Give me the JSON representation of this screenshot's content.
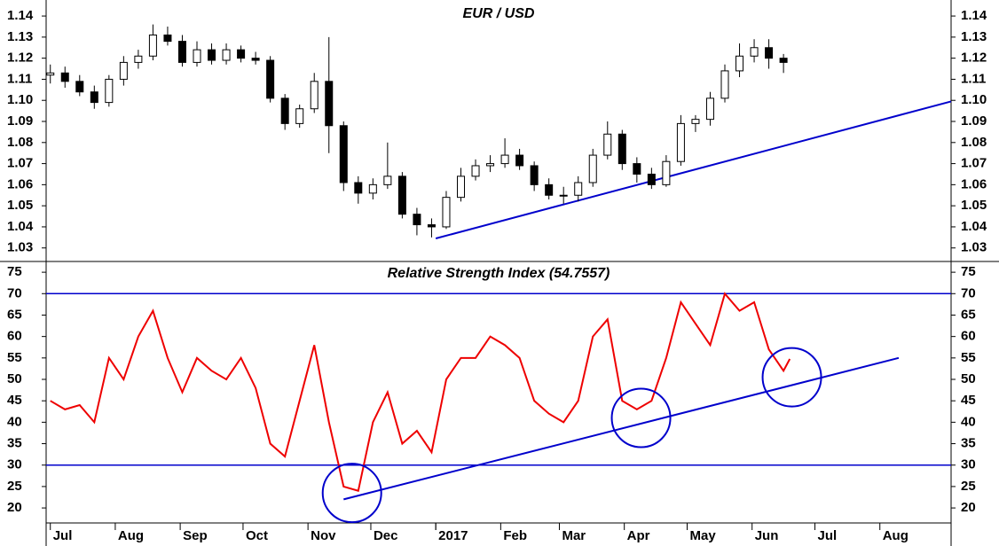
{
  "chart_data": [
    {
      "type": "candlestick",
      "title": "EUR / USD",
      "x": [
        0,
        7,
        14,
        21,
        28,
        35,
        42,
        49,
        56,
        63,
        70,
        77,
        84,
        91,
        98,
        105,
        112,
        119,
        126,
        133,
        140,
        147,
        154,
        161,
        168,
        175,
        182,
        189,
        196,
        203,
        210,
        217,
        224,
        231,
        238,
        245,
        252,
        259,
        266,
        273,
        280,
        287,
        294,
        301,
        308,
        315,
        322,
        329,
        336,
        343,
        350
      ],
      "open": [
        1.112,
        1.113,
        1.109,
        1.104,
        1.099,
        1.11,
        1.118,
        1.121,
        1.131,
        1.128,
        1.118,
        1.124,
        1.119,
        1.124,
        1.12,
        1.119,
        1.101,
        1.089,
        1.096,
        1.109,
        1.088,
        1.061,
        1.056,
        1.06,
        1.064,
        1.046,
        1.041,
        1.04,
        1.054,
        1.064,
        1.069,
        1.07,
        1.074,
        1.069,
        1.06,
        1.055,
        1.055,
        1.061,
        1.074,
        1.084,
        1.07,
        1.065,
        1.06,
        1.071,
        1.089,
        1.091,
        1.101,
        1.114,
        1.121,
        1.125,
        1.12
      ],
      "high": [
        1.117,
        1.116,
        1.112,
        1.107,
        1.112,
        1.121,
        1.124,
        1.136,
        1.135,
        1.131,
        1.128,
        1.127,
        1.127,
        1.126,
        1.123,
        1.121,
        1.103,
        1.098,
        1.113,
        1.13,
        1.09,
        1.064,
        1.063,
        1.08,
        1.066,
        1.049,
        1.044,
        1.057,
        1.068,
        1.072,
        1.074,
        1.082,
        1.077,
        1.071,
        1.063,
        1.059,
        1.064,
        1.077,
        1.09,
        1.086,
        1.073,
        1.068,
        1.074,
        1.093,
        1.093,
        1.104,
        1.117,
        1.127,
        1.129,
        1.129,
        1.122
      ],
      "low": [
        1.108,
        1.106,
        1.102,
        1.096,
        1.097,
        1.107,
        1.115,
        1.119,
        1.126,
        1.116,
        1.116,
        1.117,
        1.117,
        1.118,
        1.117,
        1.099,
        1.086,
        1.087,
        1.094,
        1.075,
        1.057,
        1.051,
        1.053,
        1.058,
        1.044,
        1.036,
        1.035,
        1.039,
        1.052,
        1.062,
        1.066,
        1.068,
        1.067,
        1.057,
        1.053,
        1.051,
        1.052,
        1.059,
        1.072,
        1.067,
        1.061,
        1.058,
        1.059,
        1.069,
        1.085,
        1.088,
        1.099,
        1.111,
        1.118,
        1.115,
        1.113
      ],
      "close": [
        1.113,
        1.109,
        1.104,
        1.099,
        1.11,
        1.118,
        1.121,
        1.131,
        1.128,
        1.118,
        1.124,
        1.119,
        1.124,
        1.12,
        1.119,
        1.101,
        1.089,
        1.096,
        1.109,
        1.088,
        1.061,
        1.056,
        1.06,
        1.064,
        1.046,
        1.041,
        1.04,
        1.054,
        1.064,
        1.069,
        1.07,
        1.074,
        1.069,
        1.06,
        1.055,
        1.055,
        1.061,
        1.074,
        1.084,
        1.07,
        1.065,
        1.06,
        1.071,
        1.089,
        1.091,
        1.101,
        1.114,
        1.121,
        1.125,
        1.12,
        1.118
      ],
      "color": "#000000",
      "xlim": [
        -2,
        430
      ],
      "ylim": [
        1.024,
        1.1476
      ],
      "yticks": [
        1.03,
        1.04,
        1.05,
        1.06,
        1.07,
        1.08,
        1.09,
        {
          "value": 1.1,
          "label": "1.10"
        },
        1.11,
        1.12,
        1.13,
        1.14
      ],
      "trendlines": [
        {
          "x": [
            184,
            430
          ],
          "y": [
            1.0345,
            1.0995
          ],
          "color": "#0000cc"
        }
      ]
    },
    {
      "type": "line",
      "title": "Relative Strength Index (54.7557)",
      "x": [
        0,
        7,
        14,
        21,
        28,
        35,
        42,
        49,
        56,
        63,
        70,
        77,
        84,
        91,
        98,
        105,
        112,
        119,
        126,
        133,
        140,
        147,
        154,
        161,
        168,
        175,
        182,
        189,
        196,
        203,
        210,
        217,
        224,
        231,
        238,
        245,
        252,
        259,
        266,
        273,
        280,
        287,
        294,
        301,
        308,
        315,
        322,
        329,
        336,
        343,
        350,
        353
      ],
      "values": [
        45,
        43,
        44,
        40,
        55,
        50,
        60,
        66,
        55,
        47,
        55,
        52,
        50,
        55,
        48,
        35,
        32,
        45,
        58,
        40,
        25,
        24,
        40,
        47,
        35,
        38,
        33,
        50,
        55,
        55,
        60,
        58,
        55,
        45,
        42,
        40,
        45,
        60,
        64,
        45,
        43,
        45,
        55,
        68,
        63,
        58,
        70,
        66,
        68,
        57,
        52,
        54.7557
      ],
      "color": "#ee0000",
      "xlim": [
        -2,
        430
      ],
      "ylim": [
        16.5,
        77.3
      ],
      "yticks": [
        20,
        25,
        30,
        35,
        40,
        45,
        50,
        55,
        60,
        65,
        70,
        75
      ],
      "hlines": [
        70,
        30
      ],
      "trendlines": [
        {
          "x": [
            140,
            405
          ],
          "y": [
            22,
            55
          ],
          "color": "#0000cc"
        }
      ],
      "highlights": [
        {
          "x": 144,
          "y": 23.5
        },
        {
          "x": 282,
          "y": 41
        },
        {
          "x": 354,
          "y": 50.5
        }
      ],
      "xticks": [
        {
          "value": 0,
          "label": "Jul"
        },
        {
          "value": 31,
          "label": "Aug"
        },
        {
          "value": 62,
          "label": "Sep"
        },
        {
          "value": 92,
          "label": "Oct"
        },
        {
          "value": 123,
          "label": "Nov"
        },
        {
          "value": 153,
          "label": "Dec"
        },
        184,
        {
          "value": 184,
          "label": "2017"
        },
        {
          "value": 215,
          "label": "Feb"
        },
        {
          "value": 243,
          "label": "Mar"
        },
        {
          "value": 274,
          "label": "Apr"
        },
        {
          "value": 304,
          "label": "May"
        },
        {
          "value": 335,
          "label": "Jun"
        },
        {
          "value": 365,
          "label": "Jul"
        },
        {
          "value": 396,
          "label": "Aug"
        }
      ]
    }
  ]
}
